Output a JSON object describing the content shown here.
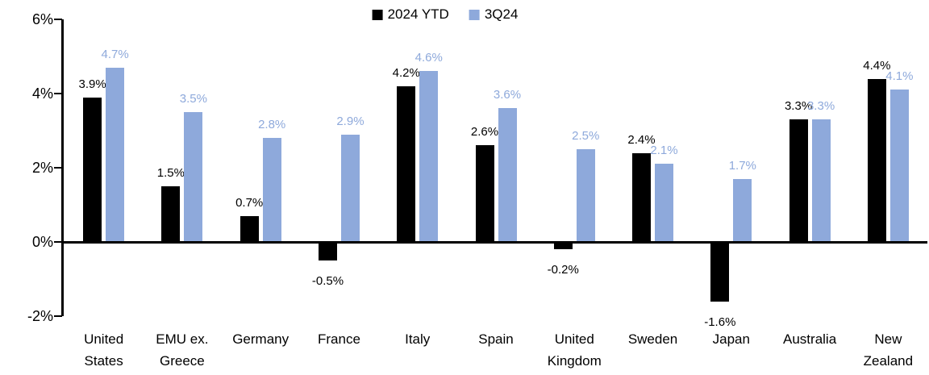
{
  "chart_data": {
    "type": "bar",
    "title": "",
    "xlabel": "",
    "ylabel": "",
    "categories": [
      "United States",
      "EMU ex. Greece",
      "Germany",
      "France",
      "Italy",
      "Spain",
      "United Kingdom",
      "Sweden",
      "Japan",
      "Australia",
      "New Zealand"
    ],
    "category_display_lines": [
      [
        "United",
        "States"
      ],
      [
        "EMU ex.",
        "Greece"
      ],
      [
        "Germany"
      ],
      [
        "France"
      ],
      [
        "Italy"
      ],
      [
        "Spain"
      ],
      [
        "United",
        "Kingdom"
      ],
      [
        "Sweden"
      ],
      [
        "Japan"
      ],
      [
        "Australia"
      ],
      [
        "New",
        "Zealand"
      ]
    ],
    "series": [
      {
        "name": "2024 YTD",
        "color": "#000000",
        "values": [
          3.9,
          1.5,
          0.7,
          -0.5,
          4.2,
          2.6,
          -0.2,
          2.4,
          -1.6,
          3.3,
          4.4
        ],
        "labels": [
          "3.9%",
          "1.5%",
          "0.7%",
          "-0.5%",
          "4.2%",
          "2.6%",
          "-0.2%",
          "2.4%",
          "-1.6%",
          "3.3%",
          "4.4%"
        ]
      },
      {
        "name": "3Q24",
        "color": "#8EA9DB",
        "values": [
          4.7,
          3.5,
          2.8,
          2.9,
          4.6,
          3.6,
          2.5,
          2.1,
          1.7,
          3.3,
          4.1
        ],
        "labels": [
          "4.7%",
          "3.5%",
          "2.8%",
          "2.9%",
          "4.6%",
          "3.6%",
          "2.5%",
          "2.1%",
          "1.7%",
          "3.3%",
          "4.1%"
        ]
      }
    ],
    "y_axis": {
      "ylim": [
        -2,
        6
      ],
      "ticks": [
        {
          "label": "6%",
          "value": 6
        },
        {
          "label": "4%",
          "value": 4
        },
        {
          "label": "2%",
          "value": 2
        },
        {
          "label": "0%",
          "value": 0
        },
        {
          "label": "-2%",
          "value": -2
        }
      ]
    },
    "legend_position": "top-center",
    "grid": false,
    "value_labels_shown": true
  }
}
